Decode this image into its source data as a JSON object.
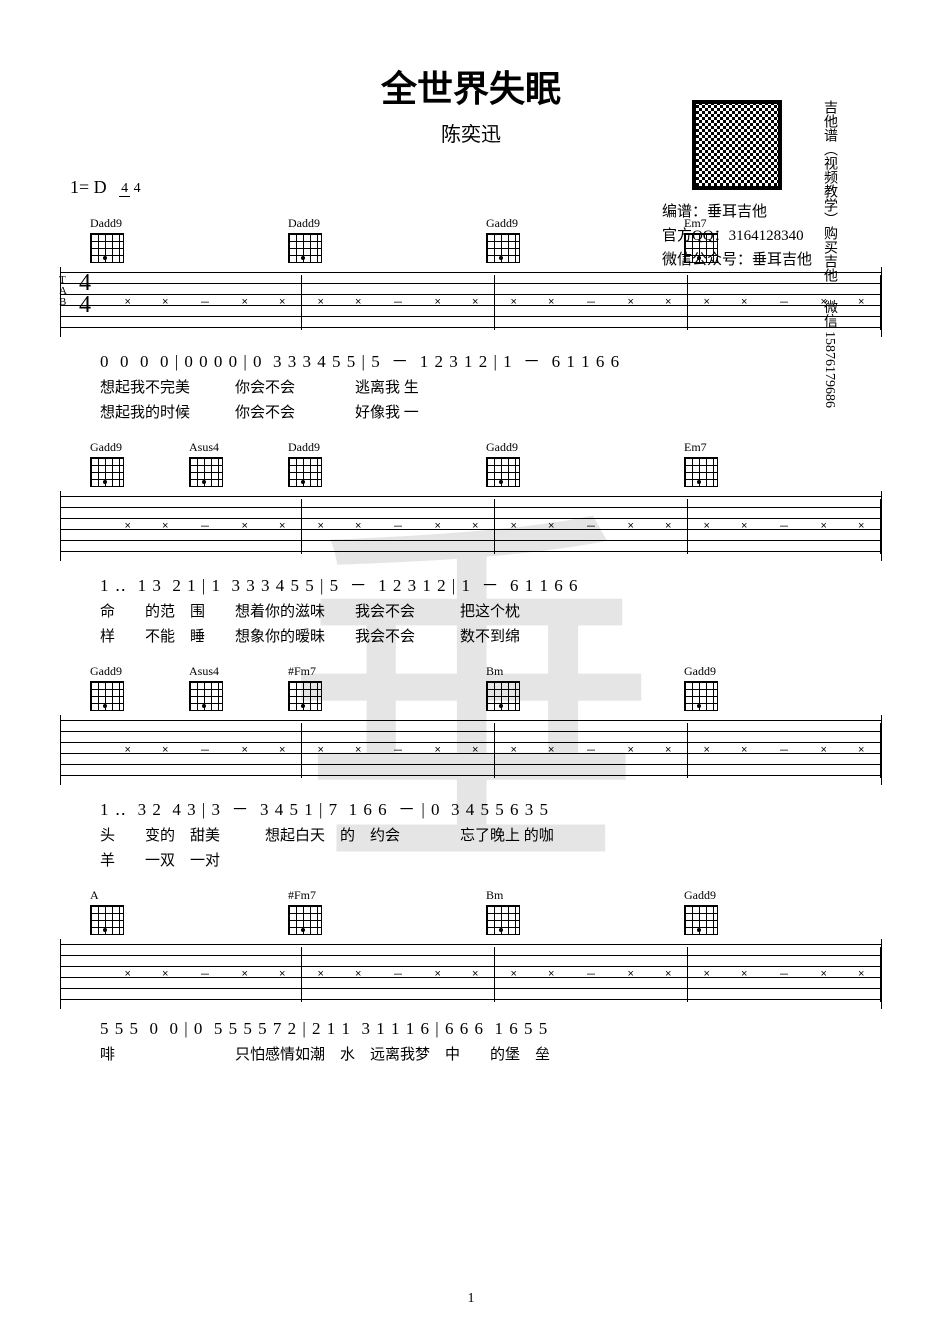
{
  "title": "全世界失眠",
  "artist": "陈奕迅",
  "credits": {
    "arranger_label": "编谱：",
    "arranger": "垂耳吉他",
    "qq_label": "官方QQ：",
    "qq": "3164128340",
    "wechat_label": "微信公众号：",
    "wechat": "垂耳吉他"
  },
  "side_text_1": "吉他谱（视频教学）购买吉他",
  "side_text_2": "微信 15876179686",
  "key": "1= D",
  "time_sig_num": "4",
  "time_sig_den": "4",
  "page_number": "1",
  "systems": [
    {
      "chords": [
        "Dadd9",
        "",
        "Dadd9",
        "",
        "Gadd9",
        "",
        "Em7",
        ""
      ],
      "tab_has_timesig": true,
      "numbered": "0  0  0  0 | 0 0 0 0 | 0  3 3 3 4 5 5 | 5  －  1 2 3 1 2 | 1  －  6 1 1 6 6",
      "lyrics_1": "想起我不完美　　　你会不会　　　　逃离我 生",
      "lyrics_2": "想起我的时候　　　你会不会　　　　好像我 一"
    },
    {
      "chords": [
        "Gadd9",
        "Asus4",
        "Dadd9",
        "",
        "Gadd9",
        "",
        "Em7",
        ""
      ],
      "numbered": "1 ‥  1 3  2 1 | 1  3 3 3 4 5 5 | 5  －  1 2 3 1 2 | 1  －  6 1 1 6 6",
      "lyrics_1": "命　　的范　围　　想着你的滋味　　我会不会　　　把这个枕",
      "lyrics_2": "样　　不能　睡　　想象你的暧昧　　我会不会　　　数不到绵"
    },
    {
      "chords": [
        "Gadd9",
        "Asus4",
        "#Fm7",
        "",
        "Bm",
        "",
        "Gadd9",
        ""
      ],
      "numbered": "1 ‥  3 2  4 3 | 3  －  3 4 5 1 | 7  1 6 6  － | 0  3 4 5 5 6 3 5",
      "lyrics_1": "头　　变的　甜美　　　想起白天　的　约会　　　　忘了晚上 的咖",
      "lyrics_2": "羊　　一双　一对"
    },
    {
      "chords": [
        "A",
        "",
        "#Fm7",
        "",
        "Bm",
        "",
        "Gadd9",
        ""
      ],
      "numbered": "5 5 5  0  0 | 0  5 5 5 5 7 2 | 2 1 1  3 1 1 1 6 | 6 6 6  1 6 5 5",
      "lyrics_1": "啡　　　　　　　　只怕感情如潮　水　远离我梦　中　　的堡　垒",
      "lyrics_2": ""
    }
  ]
}
